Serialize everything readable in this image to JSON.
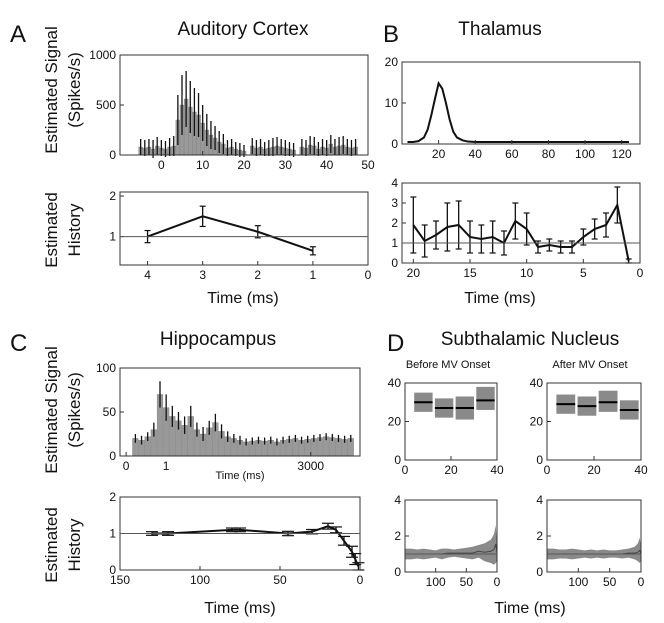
{
  "panels": {
    "A": {
      "letter": "A",
      "title": "Auditory Cortex",
      "ylabel_signal": "Estimated Signal",
      "ylabel_signal2": "(Spikes/s)",
      "ylabel_history": "Estimated",
      "ylabel_history2": "History",
      "xlabel": "Time (ms)"
    },
    "B": {
      "letter": "B",
      "title": "Thalamus",
      "xlabel": "Time (ms)"
    },
    "C": {
      "letter": "C",
      "title": "Hippocampus",
      "ylabel_signal": "Estimated Signal",
      "ylabel_signal2": "(Spikes/s)",
      "ylabel_history": "Estimated",
      "ylabel_history2": "History",
      "inner_xlabel": "Time (ms)",
      "xlabel": "Time (ms)"
    },
    "D": {
      "letter": "D",
      "title": "Subthalamic Nucleus",
      "sub_left": "Before MV Onset",
      "sub_right": "After MV Onset",
      "xlabel": "Time (ms)"
    }
  },
  "chart_data": [
    {
      "id": "A-signal",
      "type": "bar",
      "xlim": [
        -10,
        50
      ],
      "ylim": [
        0,
        1000
      ],
      "xticks": [
        0,
        10,
        20,
        30,
        40,
        50
      ],
      "yticks": [
        0,
        500,
        1000
      ],
      "bar_width": 1,
      "color": "#999999",
      "x": [
        -5,
        -4,
        -3,
        -2,
        -1,
        0,
        1,
        2,
        3,
        4,
        5,
        6,
        7,
        8,
        9,
        10,
        11,
        12,
        13,
        14,
        15,
        16,
        17,
        18,
        19,
        20,
        21,
        22,
        23,
        24,
        25,
        26,
        27,
        28,
        29,
        30,
        31,
        32,
        33,
        34,
        35,
        36,
        37,
        38,
        39,
        40,
        41,
        42,
        43,
        44,
        45,
        46,
        47,
        48
      ],
      "values": [
        80,
        70,
        80,
        60,
        90,
        70,
        60,
        80,
        90,
        350,
        500,
        560,
        480,
        430,
        400,
        320,
        250,
        200,
        170,
        130,
        110,
        70,
        80,
        60,
        50,
        40,
        0,
        90,
        70,
        80,
        60,
        70,
        80,
        90,
        80,
        70,
        60,
        50,
        0,
        80,
        70,
        100,
        90,
        60,
        80,
        70,
        110,
        80,
        90,
        100,
        80,
        70,
        80,
        0
      ],
      "err": [
        80,
        80,
        80,
        90,
        90,
        80,
        80,
        90,
        100,
        250,
        300,
        280,
        260,
        240,
        220,
        180,
        160,
        140,
        120,
        110,
        100,
        80,
        80,
        70,
        70,
        60,
        0,
        80,
        80,
        80,
        70,
        80,
        90,
        90,
        80,
        80,
        70,
        70,
        0,
        80,
        80,
        90,
        90,
        70,
        80,
        80,
        90,
        80,
        90,
        90,
        80,
        80,
        80,
        0
      ]
    },
    {
      "id": "A-history",
      "type": "line",
      "xlim": [
        4.5,
        0
      ],
      "ylim": [
        0.3,
        2.1
      ],
      "xticks": [
        4,
        3,
        2,
        1,
        0
      ],
      "yticks": [
        1,
        2
      ],
      "hline": 1,
      "x": [
        4,
        3,
        2,
        1
      ],
      "y": [
        1.0,
        1.5,
        1.12,
        0.65
      ],
      "err": [
        0.15,
        0.25,
        0.15,
        0.1
      ]
    },
    {
      "id": "B-signal",
      "type": "line",
      "xlim": [
        0,
        130
      ],
      "ylim": [
        0,
        20
      ],
      "xticks": [
        20,
        40,
        60,
        80,
        100,
        120
      ],
      "yticks": [
        0,
        10,
        20
      ],
      "x": [
        3,
        6,
        9,
        12,
        14,
        16,
        18,
        20,
        22,
        24,
        26,
        28,
        30,
        33,
        36,
        40,
        45,
        50,
        60,
        80,
        100,
        124
      ],
      "y": [
        0.5,
        0.5,
        0.7,
        1.6,
        3.5,
        7,
        11,
        14.8,
        13.5,
        10,
        6,
        3,
        1.6,
        0.9,
        0.6,
        0.5,
        0.5,
        0.5,
        0.5,
        0.5,
        0.5,
        0.5
      ]
    },
    {
      "id": "B-history",
      "type": "line",
      "xlim": [
        21,
        0
      ],
      "ylim": [
        0,
        4
      ],
      "xticks": [
        20,
        15,
        10,
        5,
        0
      ],
      "yticks": [
        0,
        1,
        2,
        3,
        4
      ],
      "hline": 1,
      "x": [
        20,
        19,
        18,
        17,
        16,
        15,
        14,
        13,
        12,
        11,
        10,
        9,
        8,
        7,
        6,
        5,
        4,
        3,
        2,
        1
      ],
      "y": [
        1.9,
        1.1,
        1.4,
        1.8,
        1.9,
        1.3,
        1.2,
        1.3,
        1.0,
        2.1,
        1.7,
        0.8,
        0.9,
        0.8,
        0.8,
        1.3,
        1.7,
        1.9,
        2.9,
        0.1
      ],
      "err": [
        1.4,
        0.8,
        0.7,
        1.2,
        1.2,
        0.8,
        0.7,
        0.8,
        0.6,
        0.9,
        0.8,
        0.3,
        0.3,
        0.3,
        0.3,
        0.4,
        0.5,
        0.6,
        0.9,
        0.1
      ]
    },
    {
      "id": "C-signal",
      "type": "bar",
      "xlim": [
        -100,
        3800
      ],
      "ylim": [
        0,
        100
      ],
      "xticks": [
        0,
        3000
      ],
      "ticklabels": [
        "0",
        "3000"
      ],
      "yticks": [
        0,
        50,
        100
      ],
      "center_label": "1",
      "center_label_x": 650,
      "bar_width": 95,
      "color": "#999999",
      "x": [
        150,
        250,
        350,
        450,
        550,
        650,
        750,
        850,
        950,
        1050,
        1150,
        1250,
        1350,
        1450,
        1550,
        1650,
        1750,
        1850,
        1950,
        2050,
        2150,
        2250,
        2350,
        2450,
        2550,
        2650,
        2750,
        2850,
        2950,
        3050,
        3150,
        3250,
        3350,
        3450,
        3550,
        3650
      ],
      "values": [
        20,
        18,
        22,
        30,
        70,
        55,
        45,
        40,
        35,
        45,
        30,
        25,
        32,
        38,
        28,
        22,
        20,
        18,
        16,
        17,
        18,
        17,
        18,
        16,
        18,
        19,
        20,
        18,
        19,
        20,
        21,
        22,
        21,
        20,
        19,
        20
      ],
      "err": [
        5,
        5,
        5,
        8,
        15,
        15,
        12,
        10,
        10,
        12,
        8,
        8,
        8,
        10,
        8,
        6,
        5,
        5,
        4,
        4,
        4,
        4,
        4,
        4,
        4,
        4,
        4,
        4,
        4,
        4,
        4,
        4,
        4,
        4,
        4,
        4
      ]
    },
    {
      "id": "C-history",
      "type": "line",
      "xlim": [
        150,
        0
      ],
      "ylim": [
        0,
        2
      ],
      "xticks": [
        150,
        100,
        50,
        0
      ],
      "yticks": [
        0,
        1,
        2
      ],
      "hline": 1,
      "x": [
        130,
        120,
        80,
        75,
        45,
        30,
        20,
        15,
        10,
        5,
        3,
        1
      ],
      "y": [
        1.0,
        1.0,
        1.1,
        1.1,
        1.0,
        1.05,
        1.2,
        1.1,
        0.8,
        0.5,
        0.3,
        0.1
      ],
      "err": [
        0.05,
        0.05,
        0.05,
        0.05,
        0.06,
        0.06,
        0.08,
        0.08,
        0.12,
        0.15,
        0.15,
        0.1
      ]
    },
    {
      "id": "D-signal-before",
      "type": "box",
      "xlim": [
        0,
        40
      ],
      "ylim": [
        0,
        40
      ],
      "xticks": [
        0,
        20,
        40
      ],
      "yticks": [
        0,
        20,
        40
      ],
      "x": [
        8,
        17,
        26,
        35
      ],
      "width": 8,
      "median": [
        30,
        27,
        27,
        31
      ],
      "low": [
        25,
        22,
        21,
        26
      ],
      "high": [
        35,
        32,
        33,
        38
      ]
    },
    {
      "id": "D-signal-after",
      "type": "box",
      "xlim": [
        0,
        40
      ],
      "ylim": [
        0,
        40
      ],
      "xticks": [
        0,
        20,
        40
      ],
      "yticks": [
        0,
        20,
        40
      ],
      "x": [
        8,
        17,
        26,
        35
      ],
      "width": 8,
      "median": [
        29,
        28,
        30,
        26
      ],
      "low": [
        24,
        23,
        25,
        21
      ],
      "high": [
        34,
        33,
        36,
        31
      ]
    },
    {
      "id": "D-history-before",
      "type": "area",
      "xlim": [
        150,
        0
      ],
      "ylim": [
        0,
        4
      ],
      "xticks": [
        100,
        50,
        0
      ],
      "yticks": [
        0,
        2,
        4
      ],
      "hline": 1,
      "x": [
        150,
        140,
        130,
        120,
        110,
        100,
        90,
        80,
        70,
        60,
        50,
        40,
        30,
        20,
        10,
        5,
        2,
        0
      ],
      "low": [
        0.7,
        0.7,
        0.75,
        0.7,
        0.75,
        0.8,
        0.7,
        0.8,
        0.85,
        0.8,
        0.75,
        0.7,
        0.8,
        0.6,
        0.5,
        0.4,
        0.5,
        0.6
      ],
      "high": [
        1.3,
        1.3,
        1.25,
        1.3,
        1.25,
        1.2,
        1.3,
        1.3,
        1.25,
        1.3,
        1.35,
        1.4,
        1.5,
        1.6,
        1.8,
        2.1,
        2.6,
        1.5
      ]
    },
    {
      "id": "D-history-after",
      "type": "area",
      "xlim": [
        150,
        0
      ],
      "ylim": [
        0,
        4
      ],
      "xticks": [
        100,
        50,
        0
      ],
      "yticks": [
        0,
        2,
        4
      ],
      "hline": 1,
      "x": [
        150,
        140,
        130,
        120,
        110,
        100,
        90,
        80,
        70,
        60,
        50,
        40,
        30,
        20,
        10,
        5,
        2,
        0
      ],
      "low": [
        0.7,
        0.7,
        0.75,
        0.75,
        0.7,
        0.75,
        0.8,
        0.75,
        0.8,
        0.75,
        0.8,
        0.8,
        0.75,
        0.8,
        0.7,
        0.6,
        0.5,
        0.6
      ],
      "high": [
        1.3,
        1.3,
        1.25,
        1.25,
        1.3,
        1.25,
        1.2,
        1.25,
        1.2,
        1.25,
        1.2,
        1.2,
        1.25,
        1.3,
        1.4,
        1.6,
        1.9,
        1.4
      ]
    }
  ]
}
